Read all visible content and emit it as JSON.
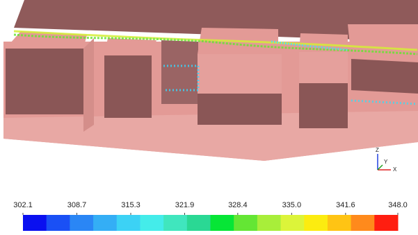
{
  "colorbar": {
    "ticks": [
      302.1,
      308.7,
      315.3,
      321.9,
      328.4,
      {
        "value": 335,
        "label": "335.0"
      },
      341.6,
      {
        "value": 348,
        "label": "348.0"
      }
    ],
    "lim": [
      302.1,
      348.0
    ],
    "colors": [
      "#0a10f0",
      "#1a50f5",
      "#2a86f5",
      "#34aef5",
      "#3cd2f5",
      "#44ecea",
      "#40e6be",
      "#2ad894",
      "#06e636",
      "#64e634",
      "#a8ee3a",
      "#dcf43a",
      "#fcec10",
      "#ffc414",
      "#ff8a1c",
      "#ff1e10"
    ]
  },
  "triad": {
    "z": "Z",
    "x": "X",
    "y": "Y"
  }
}
